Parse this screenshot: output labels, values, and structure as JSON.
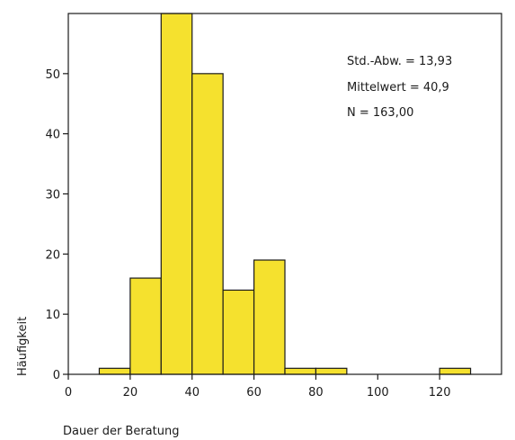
{
  "chart_data": {
    "type": "bar",
    "title": "",
    "xlabel": "Dauer der Beratung",
    "ylabel": "Häufigkeit",
    "xlim": [
      0,
      140
    ],
    "ylim": [
      0,
      60
    ],
    "x_ticks": [
      0,
      20,
      40,
      60,
      80,
      100,
      120
    ],
    "y_ticks": [
      0,
      10,
      20,
      30,
      40,
      50
    ],
    "bin_width": 10,
    "bins": [
      {
        "start": 10,
        "end": 20,
        "count": 1
      },
      {
        "start": 20,
        "end": 30,
        "count": 16
      },
      {
        "start": 30,
        "end": 40,
        "count": 60
      },
      {
        "start": 40,
        "end": 50,
        "count": 50
      },
      {
        "start": 50,
        "end": 60,
        "count": 14
      },
      {
        "start": 60,
        "end": 70,
        "count": 19
      },
      {
        "start": 70,
        "end": 80,
        "count": 1
      },
      {
        "start": 80,
        "end": 90,
        "count": 1
      },
      {
        "start": 120,
        "end": 130,
        "count": 1
      }
    ],
    "bar_color": "#f5e12e",
    "bar_edge_color": "#1a1a1a",
    "grid": false,
    "legend": "none",
    "stats": {
      "std_label": "Std.-Abw. = 13,93",
      "mean_label": "Mittelwert = 40,9",
      "n_label": "N = 163,00"
    }
  }
}
